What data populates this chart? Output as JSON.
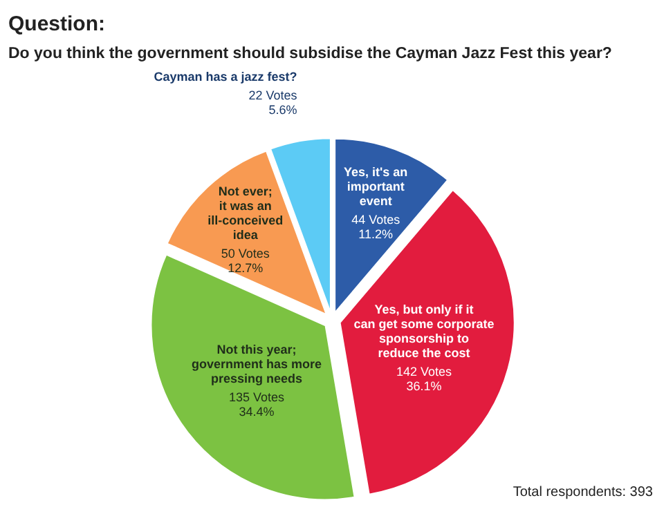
{
  "chart_data": {
    "type": "pie",
    "title": "Question:",
    "subtitle": "Do you think the government should subsidise the Cayman Jazz Fest this year?",
    "categories": [
      "Yes, it's an\nimportant\nevent",
      "Yes, but only if it\ncan get some corporate\nsponsorship to\nreduce the cost",
      "Not this year;\ngovernment has more\npressing needs",
      "Not ever;\nit was an\nill-conceived\nidea",
      "Cayman has a jazz fest?"
    ],
    "values": [
      44,
      142,
      135,
      50,
      22
    ],
    "value_labels": [
      "44 Votes\n11.2%",
      "142 Votes\n36.1%",
      "135 Votes\n34.4%",
      "50 Votes\n12.7%",
      "22 Votes\n5.6%"
    ],
    "colors": [
      "#2d5ca8",
      "#e21c3e",
      "#7cc242",
      "#f89a52",
      "#5ccbf5"
    ],
    "annotations": [
      "Total respondents: 393"
    ]
  }
}
